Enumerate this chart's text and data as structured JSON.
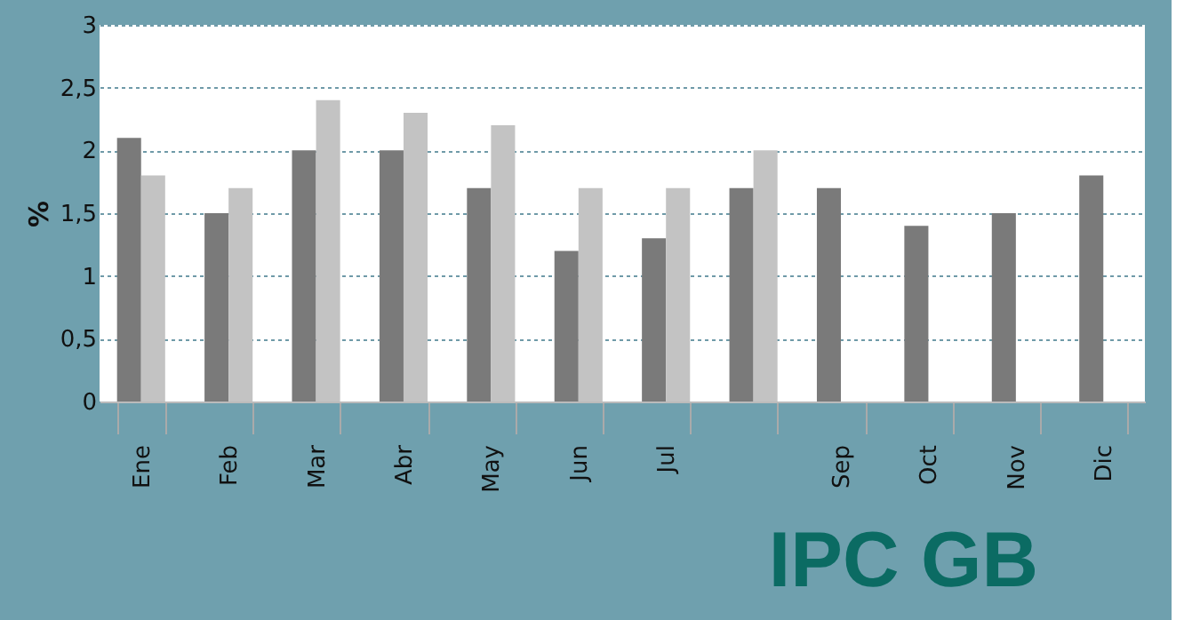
{
  "chart_data": {
    "type": "bar",
    "title": "IPC  GB",
    "ylabel": "%",
    "categories": [
      "Ene",
      "Feb",
      "Mar",
      "Abr",
      "May",
      "Jun",
      "Jul",
      null,
      "Sep",
      "Oct",
      "Nov",
      "Dic"
    ],
    "series": [
      {
        "color": "#7a7a7a",
        "values": [
          2.1,
          1.5,
          2.0,
          2.0,
          1.7,
          1.2,
          1.3,
          1.7,
          1.7,
          1.4,
          1.5,
          1.8
        ]
      },
      {
        "color": "#c3c3c3",
        "values": [
          1.8,
          1.7,
          2.4,
          2.3,
          2.2,
          1.7,
          1.7,
          2.0,
          null,
          null,
          null,
          null
        ]
      }
    ],
    "ylim": [
      0,
      3
    ],
    "yticks": [
      0,
      {
        "value": 0.5,
        "label": "0,5"
      },
      1,
      {
        "value": 1.5,
        "label": "1,5"
      },
      2,
      {
        "value": 2.5,
        "label": "2,5"
      },
      3
    ],
    "grid": "y",
    "legend": false
  }
}
